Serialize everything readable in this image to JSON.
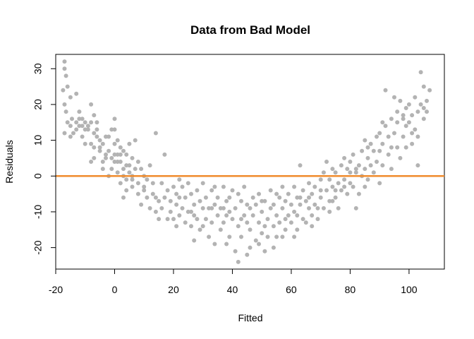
{
  "chart_data": {
    "type": "scatter",
    "title": "Data from Bad Model",
    "xlabel": "Fitted",
    "ylabel": "Residuals",
    "xlim": [
      -20,
      112
    ],
    "ylim": [
      -26,
      34
    ],
    "x_ticks": [
      -20,
      0,
      20,
      40,
      60,
      80,
      100
    ],
    "x_tick_labels": [
      "-20",
      "0",
      "20",
      "40",
      "60",
      "80",
      "100"
    ],
    "y_ticks": [
      -20,
      -10,
      0,
      10,
      20,
      30
    ],
    "y_tick_labels": [
      "-20",
      "-10",
      "0",
      "10",
      "20",
      "30"
    ],
    "point_color": "#b3b3b3",
    "reference_line": {
      "y": 0,
      "color": "#f08c2e"
    },
    "grid": false,
    "legend": "none",
    "points": [
      [
        -17.5,
        24
      ],
      [
        -17,
        32
      ],
      [
        -17,
        30
      ],
      [
        -16.5,
        28
      ],
      [
        -16,
        25
      ],
      [
        -17,
        20
      ],
      [
        -16.5,
        18
      ],
      [
        -17,
        12
      ],
      [
        -15,
        22
      ],
      [
        -14.5,
        16
      ],
      [
        -15,
        14
      ],
      [
        -13,
        23
      ],
      [
        -13,
        15
      ],
      [
        -12,
        16
      ],
      [
        -11,
        16
      ],
      [
        -11,
        14
      ],
      [
        -10,
        13
      ],
      [
        -9,
        14
      ],
      [
        -8,
        20
      ],
      [
        -7,
        17
      ],
      [
        -12,
        14
      ],
      [
        -14,
        12
      ],
      [
        -13,
        13
      ],
      [
        -11,
        11
      ],
      [
        -10,
        9
      ],
      [
        -8,
        9
      ],
      [
        -7,
        8
      ],
      [
        -7,
        12
      ],
      [
        -6,
        13
      ],
      [
        -6,
        15
      ],
      [
        -6,
        11
      ],
      [
        -5,
        10
      ],
      [
        -5,
        7
      ],
      [
        -4,
        9
      ],
      [
        -3,
        11
      ],
      [
        -3,
        6
      ],
      [
        -2,
        7
      ],
      [
        -2,
        11
      ],
      [
        -1,
        13
      ],
      [
        -1,
        5
      ],
      [
        0,
        13
      ],
      [
        0,
        6
      ],
      [
        0,
        16
      ],
      [
        0,
        9
      ],
      [
        1,
        6
      ],
      [
        1,
        4
      ],
      [
        1,
        10
      ],
      [
        2,
        8
      ],
      [
        2,
        4
      ],
      [
        3,
        0
      ],
      [
        3,
        7
      ],
      [
        3,
        2
      ],
      [
        4,
        -1
      ],
      [
        4,
        6
      ],
      [
        5,
        3
      ],
      [
        5,
        9
      ],
      [
        6,
        -1
      ],
      [
        6,
        5
      ],
      [
        7,
        10
      ],
      [
        7,
        2
      ],
      [
        -9,
        13
      ],
      [
        -8,
        4
      ],
      [
        -7,
        5
      ],
      [
        -4,
        2
      ],
      [
        -3,
        5
      ],
      [
        -2,
        0
      ],
      [
        -1,
        2
      ],
      [
        1,
        1
      ],
      [
        2,
        -2
      ],
      [
        3,
        -6
      ],
      [
        4,
        -4
      ],
      [
        5,
        1
      ],
      [
        6,
        0
      ],
      [
        8,
        -2
      ],
      [
        8,
        4
      ],
      [
        9,
        2
      ],
      [
        9,
        -8
      ],
      [
        10,
        0
      ],
      [
        10,
        -3
      ],
      [
        11,
        -6
      ],
      [
        12,
        3
      ],
      [
        12,
        -9
      ],
      [
        13,
        -2
      ],
      [
        13,
        -5
      ],
      [
        14,
        12
      ],
      [
        14,
        -10
      ],
      [
        15,
        -7
      ],
      [
        16,
        -2
      ],
      [
        16,
        -9
      ],
      [
        17,
        -6
      ],
      [
        17,
        6
      ],
      [
        18,
        -4
      ],
      [
        18,
        -12
      ],
      [
        19,
        -7
      ],
      [
        20,
        -3
      ],
      [
        20,
        -12
      ],
      [
        21,
        -5
      ],
      [
        21,
        -8
      ],
      [
        22,
        -11
      ],
      [
        22,
        -1
      ],
      [
        23,
        -3
      ],
      [
        23,
        -9
      ],
      [
        24,
        -6
      ],
      [
        24,
        -13
      ],
      [
        25,
        -2
      ],
      [
        25,
        -10
      ],
      [
        26,
        -5
      ],
      [
        26,
        -14
      ],
      [
        27,
        -8
      ],
      [
        27,
        -18
      ],
      [
        28,
        -4
      ],
      [
        28,
        -12
      ],
      [
        29,
        -7
      ],
      [
        29,
        -15
      ],
      [
        30,
        -9
      ],
      [
        30,
        -2
      ],
      [
        31,
        -12
      ],
      [
        31,
        -6
      ],
      [
        32,
        -17
      ],
      [
        32,
        -9
      ],
      [
        33,
        -4
      ],
      [
        33,
        -13
      ],
      [
        34,
        -8
      ],
      [
        34,
        -19
      ],
      [
        35,
        -11
      ],
      [
        35,
        -6
      ],
      [
        36,
        -15
      ],
      [
        36,
        -9
      ],
      [
        37,
        -3
      ],
      [
        37,
        -13
      ],
      [
        38,
        -19
      ],
      [
        38,
        -7
      ],
      [
        39,
        -10
      ],
      [
        39,
        -17
      ],
      [
        40,
        -4
      ],
      [
        40,
        -12
      ],
      [
        41,
        -21
      ],
      [
        41,
        -9
      ],
      [
        42,
        -14
      ],
      [
        42,
        -24
      ],
      [
        43,
        -7
      ],
      [
        43,
        -17
      ],
      [
        44,
        -11
      ],
      [
        44,
        -3
      ],
      [
        45,
        -13
      ],
      [
        45,
        -22
      ],
      [
        46,
        -9
      ],
      [
        46,
        -15
      ],
      [
        47,
        -6
      ],
      [
        47,
        -11
      ],
      [
        48,
        -18
      ],
      [
        48,
        -8
      ],
      [
        49,
        -13
      ],
      [
        49,
        -5
      ],
      [
        50,
        -16
      ],
      [
        50,
        -10
      ],
      [
        51,
        -21
      ],
      [
        51,
        -7
      ],
      [
        52,
        -12
      ],
      [
        52,
        -17
      ],
      [
        53,
        -9
      ],
      [
        53,
        -4
      ],
      [
        54,
        -14
      ],
      [
        54,
        -8
      ],
      [
        55,
        -11
      ],
      [
        55,
        -17
      ],
      [
        56,
        -6
      ],
      [
        56,
        -13
      ],
      [
        57,
        -9
      ],
      [
        57,
        -3
      ],
      [
        58,
        -15
      ],
      [
        58,
        -7
      ],
      [
        59,
        -11
      ],
      [
        59,
        -5
      ],
      [
        60,
        -13
      ],
      [
        60,
        -8
      ],
      [
        61,
        -3
      ],
      [
        61,
        -10
      ],
      [
        62,
        -15
      ],
      [
        62,
        -6
      ],
      [
        63,
        3
      ],
      [
        63,
        -8
      ],
      [
        64,
        -12
      ],
      [
        64,
        -4
      ],
      [
        65,
        -7
      ],
      [
        65,
        -13
      ],
      [
        66,
        -2
      ],
      [
        66,
        -9
      ],
      [
        67,
        -5
      ],
      [
        67,
        -11
      ],
      [
        68,
        -8
      ],
      [
        68,
        -3
      ],
      [
        69,
        -12
      ],
      [
        70,
        -6
      ],
      [
        70,
        -1
      ],
      [
        71,
        1
      ],
      [
        71,
        -9
      ],
      [
        72,
        4
      ],
      [
        72,
        -4
      ],
      [
        73,
        -1
      ],
      [
        73,
        -7
      ],
      [
        74,
        2
      ],
      [
        74,
        -3
      ],
      [
        75,
        -6
      ],
      [
        75,
        1
      ],
      [
        76,
        -2
      ],
      [
        76,
        -9
      ],
      [
        77,
        3
      ],
      [
        77,
        -4
      ],
      [
        78,
        -1
      ],
      [
        78,
        5
      ],
      [
        79,
        -5
      ],
      [
        79,
        2
      ],
      [
        80,
        -2
      ],
      [
        80,
        4
      ],
      [
        81,
        -3
      ],
      [
        81,
        6
      ],
      [
        82,
        -9
      ],
      [
        82,
        1
      ],
      [
        83,
        3
      ],
      [
        83,
        -5
      ],
      [
        84,
        7
      ],
      [
        84,
        0
      ],
      [
        85,
        2
      ],
      [
        85,
        10
      ],
      [
        86,
        5
      ],
      [
        86,
        -1
      ],
      [
        87,
        9
      ],
      [
        87,
        3
      ],
      [
        88,
        7
      ],
      [
        88,
        1
      ],
      [
        89,
        11
      ],
      [
        89,
        4
      ],
      [
        90,
        7
      ],
      [
        90,
        -2
      ],
      [
        91,
        9
      ],
      [
        91,
        3
      ],
      [
        92,
        14
      ],
      [
        92,
        24
      ],
      [
        93,
        6
      ],
      [
        93,
        11
      ],
      [
        94,
        16
      ],
      [
        94,
        2
      ],
      [
        95,
        12
      ],
      [
        95,
        22
      ],
      [
        96,
        8
      ],
      [
        96,
        15
      ],
      [
        97,
        21
      ],
      [
        97,
        5
      ],
      [
        98,
        17
      ],
      [
        98,
        11
      ],
      [
        99,
        19
      ],
      [
        99,
        14
      ],
      [
        100,
        15
      ],
      [
        100,
        20
      ],
      [
        101,
        9
      ],
      [
        101,
        17
      ],
      [
        102,
        13
      ],
      [
        102,
        22
      ],
      [
        103,
        18
      ],
      [
        103,
        3
      ],
      [
        104,
        29
      ],
      [
        104,
        20
      ],
      [
        105,
        16
      ],
      [
        105,
        25
      ],
      [
        106,
        18
      ],
      [
        106,
        21
      ],
      [
        107,
        24
      ],
      [
        103,
        11
      ],
      [
        99,
        8
      ],
      [
        -15,
        11
      ],
      [
        -10,
        15
      ],
      [
        -5,
        8
      ],
      [
        0,
        4
      ],
      [
        2,
        6
      ],
      [
        6,
        -3
      ],
      [
        8,
        -5
      ],
      [
        11,
        -1
      ],
      [
        14,
        -6
      ],
      [
        19,
        -10
      ],
      [
        22,
        -6
      ],
      [
        26,
        -10
      ],
      [
        30,
        -14
      ],
      [
        34,
        -3
      ],
      [
        38,
        -11
      ],
      [
        42,
        -5
      ],
      [
        46,
        -20
      ],
      [
        50,
        -7
      ],
      [
        54,
        -20
      ],
      [
        58,
        -12
      ],
      [
        62,
        -11
      ],
      [
        66,
        -6
      ],
      [
        70,
        -4
      ],
      [
        74,
        -7
      ],
      [
        78,
        -3
      ],
      [
        82,
        2
      ],
      [
        86,
        8
      ],
      [
        90,
        12
      ],
      [
        94,
        8
      ],
      [
        98,
        16
      ],
      [
        -16,
        15
      ],
      [
        -12,
        18
      ],
      [
        -8,
        15
      ],
      [
        -4,
        4
      ],
      [
        4,
        3
      ],
      [
        10,
        -4
      ],
      [
        15,
        -12
      ],
      [
        21,
        -14
      ],
      [
        27,
        -11
      ],
      [
        33,
        -9
      ],
      [
        39,
        -6
      ],
      [
        45,
        -8
      ],
      [
        51,
        -14
      ],
      [
        57,
        -17
      ],
      [
        63,
        -6
      ],
      [
        69,
        -9
      ],
      [
        75,
        -4
      ],
      [
        80,
        1
      ],
      [
        85,
        -3
      ],
      [
        91,
        15
      ],
      [
        96,
        18
      ],
      [
        101,
        12
      ],
      [
        105,
        19
      ],
      [
        37,
        -9
      ],
      [
        43,
        -12
      ],
      [
        49,
        -19
      ],
      [
        55,
        -5
      ],
      [
        61,
        -17
      ],
      [
        67,
        -14
      ],
      [
        73,
        -10
      ]
    ]
  }
}
